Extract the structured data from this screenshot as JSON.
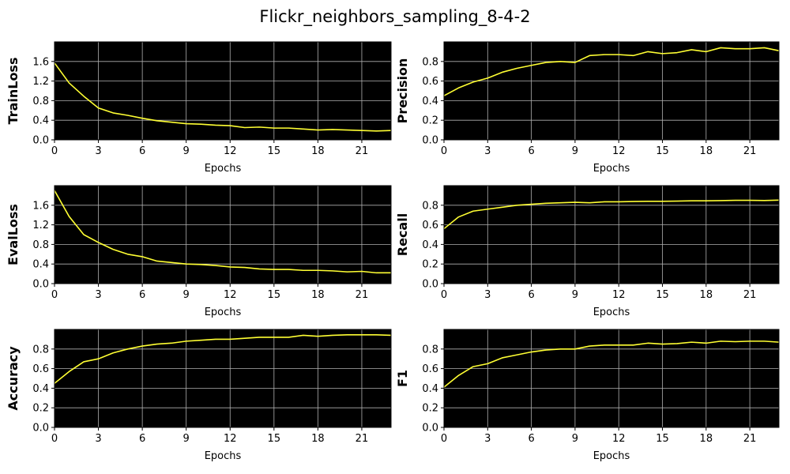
{
  "figure": {
    "title": "Flickr_neighbors_sampling_8-4-2"
  },
  "colors": {
    "plot_background": "#000000",
    "line": "#ffff33",
    "grid": "#b0b0b0",
    "frame": "#000000"
  },
  "chart_data": [
    {
      "type": "line",
      "ylabel": "TrainLoss",
      "xlabel": "Epochs",
      "xlim": [
        0,
        23
      ],
      "ylim": [
        0,
        2.0
      ],
      "xticks": [
        0,
        3,
        6,
        9,
        12,
        15,
        18,
        21
      ],
      "yticks": [
        0.0,
        0.4,
        0.8,
        1.2,
        1.6
      ],
      "ytick_labels": [
        "0.0",
        "0.4",
        "0.8",
        "1.2",
        "1.6"
      ],
      "grid": true,
      "x": [
        0,
        1,
        2,
        3,
        4,
        5,
        6,
        7,
        8,
        9,
        10,
        11,
        12,
        13,
        14,
        15,
        16,
        17,
        18,
        19,
        20,
        21,
        22,
        23
      ],
      "values": [
        1.57,
        1.16,
        0.89,
        0.65,
        0.55,
        0.5,
        0.44,
        0.39,
        0.36,
        0.33,
        0.32,
        0.3,
        0.29,
        0.25,
        0.26,
        0.24,
        0.24,
        0.22,
        0.2,
        0.21,
        0.2,
        0.19,
        0.18,
        0.19
      ]
    },
    {
      "type": "line",
      "ylabel": "Precision",
      "xlabel": "Epochs",
      "xlim": [
        0,
        23
      ],
      "ylim": [
        0,
        1.0
      ],
      "xticks": [
        0,
        3,
        6,
        9,
        12,
        15,
        18,
        21
      ],
      "yticks": [
        0.0,
        0.2,
        0.4,
        0.6,
        0.8
      ],
      "ytick_labels": [
        "0.0",
        "0.2",
        "0.4",
        "0.6",
        "0.8"
      ],
      "grid": true,
      "x": [
        0,
        1,
        2,
        3,
        4,
        5,
        6,
        7,
        8,
        9,
        10,
        11,
        12,
        13,
        14,
        15,
        16,
        17,
        18,
        19,
        20,
        21,
        22,
        23
      ],
      "values": [
        0.45,
        0.53,
        0.59,
        0.63,
        0.69,
        0.73,
        0.76,
        0.79,
        0.8,
        0.79,
        0.86,
        0.87,
        0.87,
        0.86,
        0.9,
        0.88,
        0.89,
        0.92,
        0.9,
        0.94,
        0.93,
        0.93,
        0.94,
        0.91
      ]
    },
    {
      "type": "line",
      "ylabel": "EvalLoss",
      "xlabel": "Epochs",
      "xlim": [
        0,
        23
      ],
      "ylim": [
        0,
        2.0
      ],
      "xticks": [
        0,
        3,
        6,
        9,
        12,
        15,
        18,
        21
      ],
      "yticks": [
        0.0,
        0.4,
        0.8,
        1.2,
        1.6
      ],
      "ytick_labels": [
        "0.0",
        "0.4",
        "0.8",
        "1.2",
        "1.6"
      ],
      "grid": true,
      "x": [
        0,
        1,
        2,
        3,
        4,
        5,
        6,
        7,
        8,
        9,
        10,
        11,
        12,
        13,
        14,
        15,
        16,
        17,
        18,
        19,
        20,
        21,
        22,
        23
      ],
      "values": [
        1.9,
        1.37,
        1.0,
        0.84,
        0.7,
        0.6,
        0.55,
        0.46,
        0.43,
        0.4,
        0.39,
        0.37,
        0.34,
        0.33,
        0.3,
        0.29,
        0.29,
        0.27,
        0.27,
        0.26,
        0.24,
        0.25,
        0.22,
        0.22
      ]
    },
    {
      "type": "line",
      "ylabel": "Recall",
      "xlabel": "Epochs",
      "xlim": [
        0,
        23
      ],
      "ylim": [
        0,
        1.0
      ],
      "xticks": [
        0,
        3,
        6,
        9,
        12,
        15,
        18,
        21
      ],
      "yticks": [
        0.0,
        0.2,
        0.4,
        0.6,
        0.8
      ],
      "ytick_labels": [
        "0.0",
        "0.2",
        "0.4",
        "0.6",
        "0.8"
      ],
      "grid": true,
      "x": [
        0,
        1,
        2,
        3,
        4,
        5,
        6,
        7,
        8,
        9,
        10,
        11,
        12,
        13,
        14,
        15,
        16,
        17,
        18,
        19,
        20,
        21,
        22,
        23
      ],
      "values": [
        0.56,
        0.68,
        0.74,
        0.76,
        0.78,
        0.8,
        0.81,
        0.82,
        0.825,
        0.83,
        0.825,
        0.835,
        0.835,
        0.838,
        0.84,
        0.84,
        0.842,
        0.845,
        0.845,
        0.847,
        0.85,
        0.85,
        0.848,
        0.852
      ]
    },
    {
      "type": "line",
      "ylabel": "Accuracy",
      "xlabel": "Epochs",
      "xlim": [
        0,
        23
      ],
      "ylim": [
        0,
        1.0
      ],
      "xticks": [
        0,
        3,
        6,
        9,
        12,
        15,
        18,
        21
      ],
      "yticks": [
        0.0,
        0.2,
        0.4,
        0.6,
        0.8
      ],
      "ytick_labels": [
        "0.0",
        "0.2",
        "0.4",
        "0.6",
        "0.8"
      ],
      "grid": true,
      "x": [
        0,
        1,
        2,
        3,
        4,
        5,
        6,
        7,
        8,
        9,
        10,
        11,
        12,
        13,
        14,
        15,
        16,
        17,
        18,
        19,
        20,
        21,
        22,
        23
      ],
      "values": [
        0.45,
        0.57,
        0.67,
        0.7,
        0.76,
        0.8,
        0.83,
        0.85,
        0.86,
        0.88,
        0.89,
        0.9,
        0.9,
        0.91,
        0.92,
        0.92,
        0.92,
        0.94,
        0.93,
        0.94,
        0.945,
        0.945,
        0.945,
        0.94
      ]
    },
    {
      "type": "line",
      "ylabel": "F1",
      "xlabel": "Epochs",
      "xlim": [
        0,
        23
      ],
      "ylim": [
        0,
        1.0
      ],
      "xticks": [
        0,
        3,
        6,
        9,
        12,
        15,
        18,
        21
      ],
      "yticks": [
        0.0,
        0.2,
        0.4,
        0.6,
        0.8
      ],
      "ytick_labels": [
        "0.0",
        "0.2",
        "0.4",
        "0.6",
        "0.8"
      ],
      "grid": true,
      "x": [
        0,
        1,
        2,
        3,
        4,
        5,
        6,
        7,
        8,
        9,
        10,
        11,
        12,
        13,
        14,
        15,
        16,
        17,
        18,
        19,
        20,
        21,
        22,
        23
      ],
      "values": [
        0.41,
        0.53,
        0.62,
        0.65,
        0.71,
        0.74,
        0.77,
        0.79,
        0.8,
        0.8,
        0.83,
        0.84,
        0.84,
        0.84,
        0.86,
        0.85,
        0.855,
        0.87,
        0.86,
        0.88,
        0.875,
        0.88,
        0.88,
        0.87
      ]
    }
  ]
}
